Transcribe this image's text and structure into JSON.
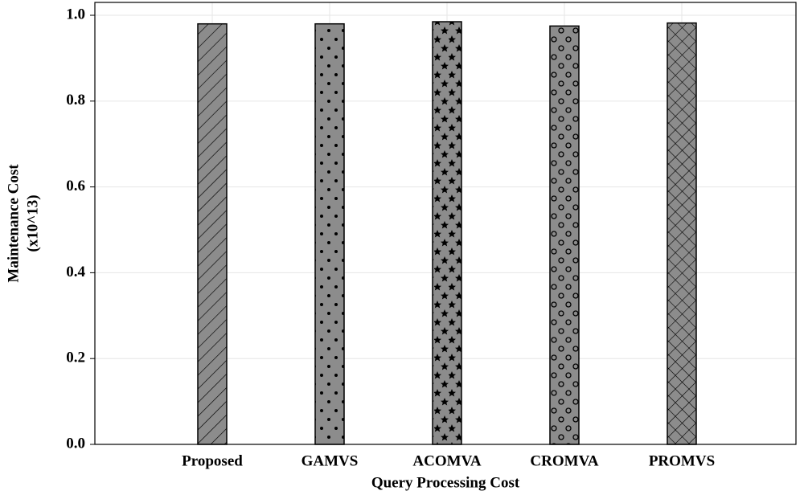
{
  "chart_data": {
    "type": "bar",
    "xlabel": "Query Processing Cost",
    "ylabel": [
      "Maintenance Cost",
      "(x10^13)"
    ],
    "categories": [
      "Proposed",
      "GAMVS",
      "ACOMVA",
      "CROMVA",
      "PROMVS"
    ],
    "values": [
      0.98,
      0.98,
      0.985,
      0.975,
      0.982
    ],
    "color": "#8c8c8c",
    "edgecolor": "#000000",
    "hatches": [
      "/",
      ".",
      "*",
      "o",
      "x"
    ],
    "ylim": [
      0,
      1.03
    ],
    "yticks": [
      {
        "value": 0,
        "label": "0.0"
      },
      0.2,
      0.4,
      0.6,
      0.8,
      {
        "value": 1,
        "label": "1.0"
      }
    ],
    "grid": true
  }
}
